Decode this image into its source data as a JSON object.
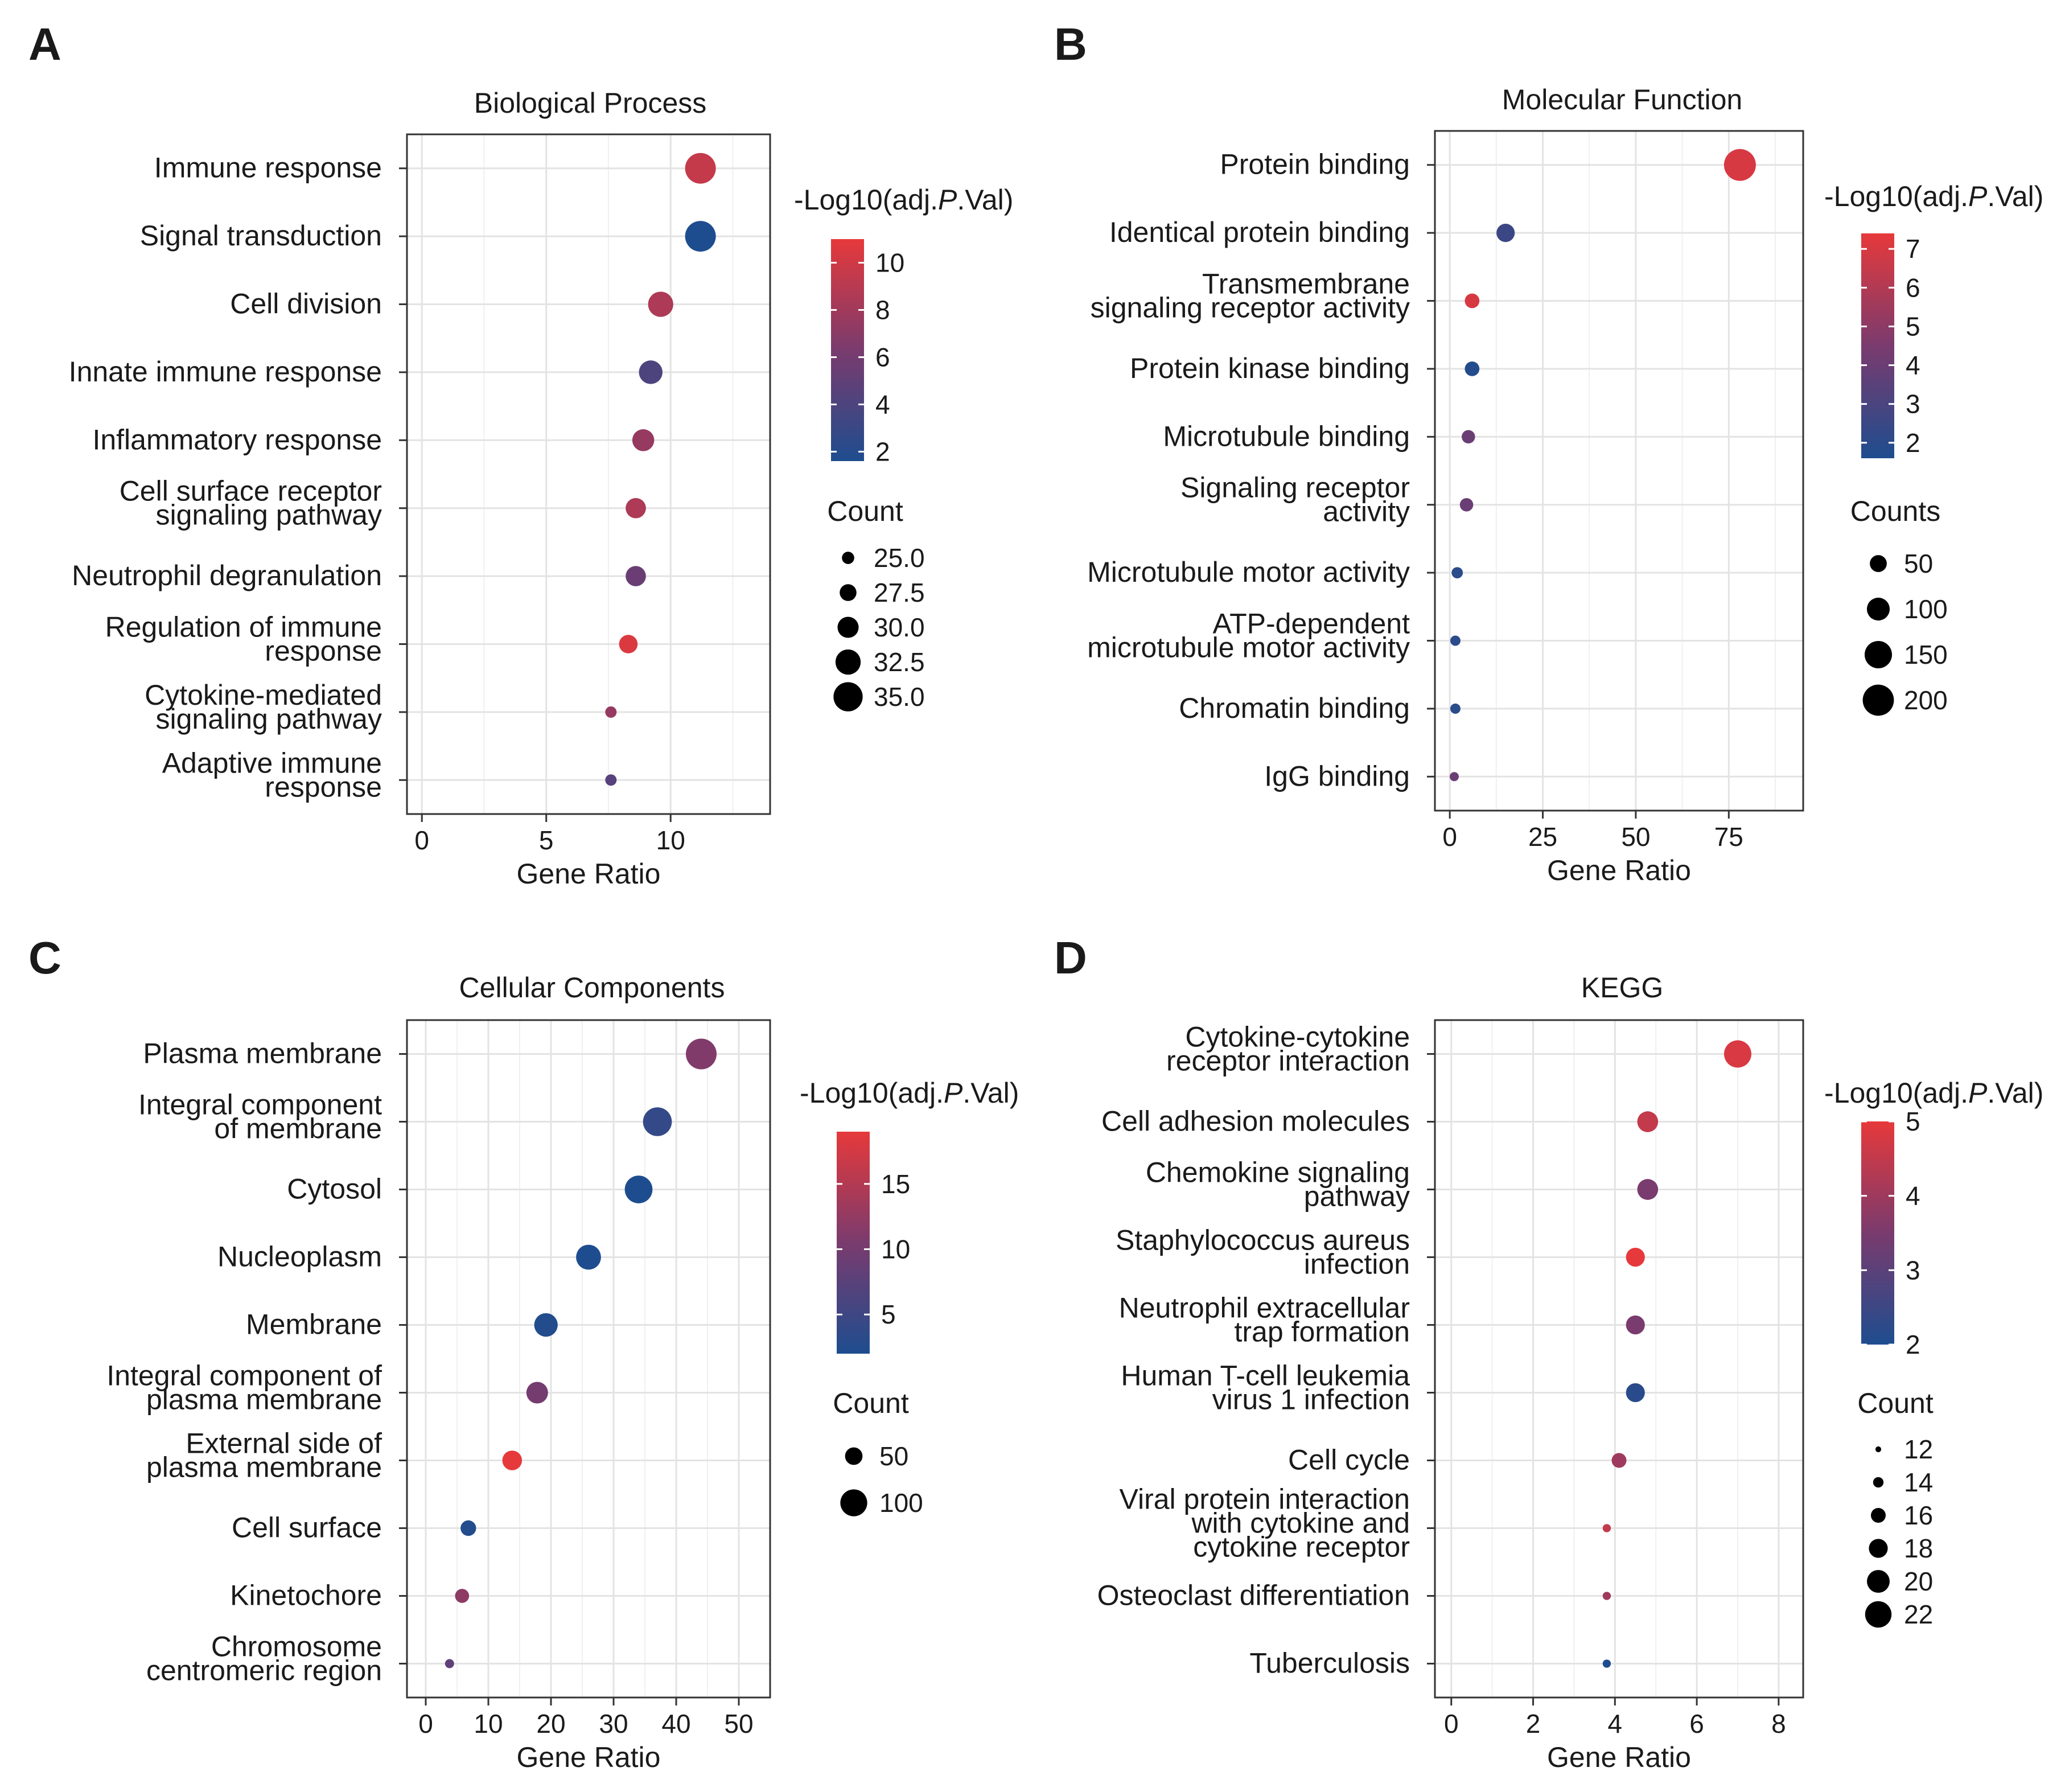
{
  "chart_data": [
    {
      "panel": "A",
      "type": "scatter",
      "title": "Biological Process",
      "xlabel": "Gene Ratio",
      "ylabel": "",
      "xlim": [
        -0.6,
        14.0
      ],
      "xticks": [
        0,
        5,
        10
      ],
      "categories": [
        [
          "Immune response"
        ],
        [
          "Signal transduction"
        ],
        [
          "Cell division"
        ],
        [
          "Innate immune response"
        ],
        [
          "Inflammatory response"
        ],
        [
          "Cell surface receptor",
          "signaling pathway"
        ],
        [
          "Neutrophil degranulation"
        ],
        [
          "Regulation of immune",
          "response"
        ],
        [
          "Cytokine-mediated",
          "signaling pathway"
        ],
        [
          "Adaptive immune",
          "response"
        ]
      ],
      "x": [
        11.2,
        11.2,
        9.6,
        9.2,
        8.9,
        8.6,
        8.6,
        8.3,
        7.6,
        7.6
      ],
      "color_values": [
        9.5,
        1.5,
        8.5,
        4.0,
        7.5,
        8.5,
        5.5,
        10.5,
        7.5,
        4.5
      ],
      "sizes": [
        36.0,
        36.0,
        32.5,
        31.5,
        30.5,
        29.5,
        29.5,
        28.5,
        24.5,
        24.5
      ],
      "color_legend": {
        "title": "-Log10(adj.",
        "title_italic": "P",
        "title_end": ".Val)",
        "range": [
          1.6,
          11.0
        ],
        "ticks": [
          "10",
          "8",
          "6",
          "4",
          "2"
        ]
      },
      "size_legend": {
        "title": "Count",
        "labels": [
          "25.0",
          "27.5",
          "30.0",
          "32.5",
          "35.0"
        ],
        "values": [
          25.0,
          27.5,
          30.0,
          32.5,
          35.0
        ],
        "range": [
          24.5,
          36.0
        ]
      }
    },
    {
      "panel": "B",
      "type": "scatter",
      "title": "Molecular Function",
      "xlabel": "Gene Ratio",
      "ylabel": "",
      "xlim": [
        -4.0,
        95.0
      ],
      "xticks": [
        0,
        25,
        50,
        75
      ],
      "categories": [
        [
          "Protein binding"
        ],
        [
          "Identical protein binding"
        ],
        [
          "Transmembrane",
          "signaling receptor activity"
        ],
        [
          "Protein kinase binding"
        ],
        [
          "Microtubule binding"
        ],
        [
          "Signaling receptor",
          "activity"
        ],
        [
          "Microtubule motor activity"
        ],
        [
          "ATP-dependent",
          "microtubule motor activity"
        ],
        [
          "Chromatin binding"
        ],
        [
          "IgG binding"
        ]
      ],
      "x": [
        78,
        15,
        6,
        6,
        5,
        4.5,
        2,
        1.5,
        1.5,
        1.2
      ],
      "color_values": [
        7.0,
        2.5,
        7.0,
        1.8,
        4.0,
        4.0,
        2.0,
        2.0,
        2.0,
        4.0
      ],
      "sizes": [
        210,
        60,
        35,
        35,
        28,
        28,
        18,
        14,
        14,
        10
      ],
      "color_legend": {
        "title": "-Log10(adj.",
        "title_italic": "P",
        "title_end": ".Val)",
        "range": [
          1.6,
          7.4
        ],
        "ticks": [
          "7",
          "6",
          "5",
          "4",
          "3",
          "2"
        ]
      },
      "size_legend": {
        "title": "Counts",
        "labels": [
          "50",
          "100",
          "150",
          "200"
        ],
        "values": [
          50,
          100,
          150,
          200
        ],
        "range": [
          10,
          210
        ]
      }
    },
    {
      "panel": "C",
      "type": "scatter",
      "title": "Cellular Components",
      "xlabel": "Gene Ratio",
      "ylabel": "",
      "xlim": [
        -3.0,
        55.0
      ],
      "xticks": [
        0,
        10,
        20,
        30,
        40,
        50
      ],
      "categories": [
        [
          "Plasma membrane"
        ],
        [
          "Integral component",
          "of membrane"
        ],
        [
          "Cytosol"
        ],
        [
          "Nucleoplasm"
        ],
        [
          "Membrane"
        ],
        [
          "Integral component of",
          "plasma membrane"
        ],
        [
          "External side of",
          "plasma membrane"
        ],
        [
          "Cell surface"
        ],
        [
          "Kinetochore"
        ],
        [
          "Chromosome",
          "centromeric region"
        ]
      ],
      "x": [
        44,
        37,
        34,
        26,
        19.2,
        17.8,
        13.8,
        6.8,
        5.8,
        3.8
      ],
      "color_values": [
        11.0,
        4.0,
        1.5,
        1.5,
        2.5,
        10.0,
        19.0,
        2.5,
        12.0,
        8.0
      ],
      "sizes": [
        125,
        112,
        105,
        88,
        80,
        70,
        60,
        42,
        36,
        20
      ],
      "color_legend": {
        "title": "-Log10(adj.",
        "title_italic": "P",
        "title_end": ".Val)",
        "range": [
          2.0,
          19.0
        ],
        "ticks": [
          "15",
          "10",
          "5"
        ]
      },
      "size_legend": {
        "title": "Count",
        "labels": [
          "50",
          "100"
        ],
        "values": [
          50,
          100
        ],
        "range": [
          20,
          125
        ]
      }
    },
    {
      "panel": "D",
      "type": "scatter",
      "title": "KEGG",
      "xlabel": "Gene Ratio",
      "ylabel": "",
      "xlim": [
        -0.4,
        8.6
      ],
      "xticks": [
        0,
        2,
        4,
        6,
        8
      ],
      "categories": [
        [
          "Cytokine-cytokine",
          "receptor interaction"
        ],
        [
          "Cell adhesion molecules"
        ],
        [
          "Chemokine signaling",
          "pathway"
        ],
        [
          "Staphylococcus aureus",
          "infection"
        ],
        [
          "Neutrophil extracellular",
          "trap formation"
        ],
        [
          "Human T-cell leukemia",
          "virus 1 infection"
        ],
        [
          "Cell cycle"
        ],
        [
          "Viral protein interaction",
          "with cytokine and",
          "cytokine receptor"
        ],
        [
          "Osteoclast differentiation"
        ],
        [
          "Tuberculosis"
        ]
      ],
      "x": [
        7.0,
        4.8,
        4.8,
        4.5,
        4.5,
        4.5,
        4.1,
        3.8,
        3.8,
        3.8
      ],
      "color_values": [
        4.8,
        4.5,
        3.5,
        5.0,
        3.5,
        2.2,
        4.0,
        4.5,
        4.0,
        2.0
      ],
      "sizes": [
        22.5,
        19.0,
        19.0,
        18.0,
        18.0,
        18.0,
        16.0,
        13.0,
        13.0,
        13.0
      ],
      "color_legend": {
        "title": "-Log10(adj.",
        "title_italic": "P",
        "title_end": ".Val)",
        "range": [
          2.0,
          5.0
        ],
        "ticks": [
          "5",
          "4",
          "3",
          "2"
        ]
      },
      "size_legend": {
        "title": "Count",
        "labels": [
          "12",
          "14",
          "16",
          "18",
          "20",
          "22"
        ],
        "values": [
          12,
          14,
          16,
          18,
          20,
          22
        ],
        "range": [
          11.5,
          22.5
        ]
      }
    }
  ],
  "colors": {
    "low": "#1e4d8f",
    "mid": "#7a3b6e",
    "high": "#e6393b"
  }
}
